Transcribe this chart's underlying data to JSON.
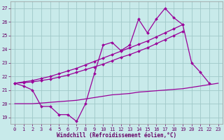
{
  "xlabel": "Windchill (Refroidissement éolien,°C)",
  "bg_color": "#c8eaea",
  "grid_color": "#a0c8c8",
  "line_color": "#990099",
  "tick_color": "#660066",
  "ylim": [
    18.5,
    27.5
  ],
  "xlim": [
    -0.5,
    23.5
  ],
  "yticks": [
    19,
    20,
    21,
    22,
    23,
    24,
    25,
    26,
    27
  ],
  "xticks": [
    0,
    1,
    2,
    3,
    4,
    5,
    6,
    7,
    8,
    9,
    10,
    11,
    12,
    13,
    14,
    15,
    16,
    17,
    18,
    19,
    20,
    21,
    22,
    23
  ],
  "jagged_x": [
    0,
    1,
    2,
    3,
    4,
    5,
    6,
    7,
    8,
    9,
    10,
    11,
    12,
    13,
    14,
    15,
    16,
    17,
    18,
    19,
    20,
    21,
    22
  ],
  "jagged_y": [
    21.5,
    21.3,
    21.0,
    19.8,
    19.8,
    19.2,
    19.2,
    18.7,
    20.0,
    22.2,
    24.3,
    24.5,
    23.9,
    24.3,
    26.2,
    25.2,
    26.2,
    27.0,
    26.3,
    25.8,
    23.0,
    22.3,
    21.5
  ],
  "trend1_x": [
    0,
    1,
    2,
    3,
    4,
    5,
    6,
    7,
    8,
    9,
    10,
    11,
    12,
    13,
    14,
    15,
    16,
    17,
    18,
    19
  ],
  "trend1_y": [
    21.5,
    21.55,
    21.6,
    21.7,
    21.8,
    21.95,
    22.1,
    22.3,
    22.5,
    22.7,
    22.9,
    23.15,
    23.4,
    23.6,
    23.85,
    24.1,
    24.4,
    24.7,
    25.0,
    25.3
  ],
  "trend2_x": [
    0,
    1,
    2,
    3,
    4,
    5,
    6,
    7,
    8,
    9,
    10,
    11,
    12,
    13,
    14,
    15,
    16,
    17,
    18,
    19
  ],
  "trend2_y": [
    21.5,
    21.6,
    21.7,
    21.85,
    22.0,
    22.2,
    22.4,
    22.6,
    22.85,
    23.1,
    23.35,
    23.6,
    23.85,
    24.1,
    24.35,
    24.6,
    24.9,
    25.2,
    25.5,
    25.8
  ],
  "flat_x": [
    0,
    1,
    2,
    3,
    4,
    5,
    6,
    7,
    8,
    9,
    10,
    11,
    12,
    13,
    14,
    15,
    16,
    17,
    18,
    19,
    20,
    21,
    22,
    23
  ],
  "flat_y": [
    20.0,
    20.0,
    20.0,
    20.05,
    20.1,
    20.15,
    20.2,
    20.25,
    20.35,
    20.45,
    20.55,
    20.65,
    20.7,
    20.75,
    20.85,
    20.9,
    20.95,
    21.0,
    21.05,
    21.1,
    21.2,
    21.3,
    21.4,
    21.5
  ]
}
